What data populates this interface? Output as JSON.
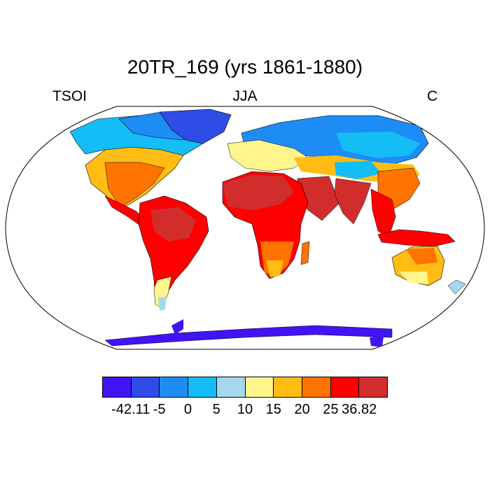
{
  "title": "20TR_169 (yrs 1861-1880)",
  "left_label": "TSOI",
  "center_label": "JJA",
  "right_label": "C",
  "colorbar": {
    "colors": [
      "#4014f5",
      "#2d4de6",
      "#1e8cf5",
      "#14bdf5",
      "#a5d8ee",
      "#fff58c",
      "#ffbd14",
      "#ff7300",
      "#ff0000",
      "#d22d2d"
    ],
    "labels": [
      "-42.11",
      "-5",
      "0",
      "5",
      "10",
      "15",
      "20",
      "25",
      "36.82"
    ]
  },
  "map": {
    "projection": "robinson",
    "ocean_color": "#ffffff",
    "regions": [
      {
        "name": "greenland",
        "temperature": -40
      },
      {
        "name": "north-canada",
        "temperature": 0
      },
      {
        "name": "siberia",
        "temperature": 3
      },
      {
        "name": "sahara",
        "temperature": 33
      },
      {
        "name": "arabia",
        "temperature": 34
      },
      {
        "name": "india",
        "temperature": 36
      },
      {
        "name": "amazon",
        "temperature": 27
      },
      {
        "name": "australia",
        "temperature": 18
      },
      {
        "name": "antarctica",
        "temperature": -42
      }
    ]
  }
}
